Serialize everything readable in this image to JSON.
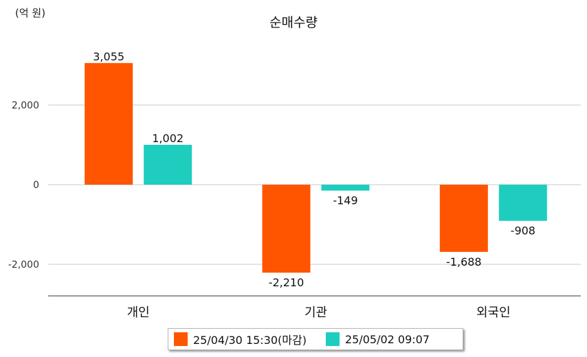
{
  "unit_label": "(억 원)",
  "chart_data": {
    "type": "bar",
    "title": "순매수량",
    "categories": [
      "개인",
      "기관",
      "외국인"
    ],
    "series": [
      {
        "name": "25/04/30 15:30(마감)",
        "color": "#ff5500",
        "values": [
          3055,
          -2210,
          -1688
        ],
        "labels": [
          "3,055",
          "-2,210",
          "-1,688"
        ]
      },
      {
        "name": "25/05/02 09:07",
        "color": "#1ecdbe",
        "values": [
          1002,
          -149,
          -908
        ],
        "labels": [
          "1,002",
          "-149",
          "-908"
        ]
      }
    ],
    "y_ticks": [
      2000,
      0,
      -2000
    ],
    "y_tick_labels": [
      "2,000",
      "0",
      "-2,000"
    ],
    "ylim": [
      -2750,
      3250
    ],
    "grid": true,
    "legend_position": "bottom"
  }
}
